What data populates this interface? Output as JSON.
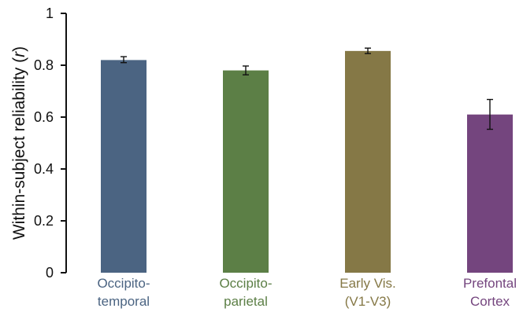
{
  "chart_data": {
    "type": "bar",
    "title": "",
    "xlabel": "",
    "ylabel": "Within-subject reliability (r)",
    "ylabel_parts": [
      "Within-subject reliability (",
      "r",
      ")"
    ],
    "ylim": [
      0,
      1
    ],
    "yticks": [
      0,
      0.2,
      0.4,
      0.6,
      0.8,
      1
    ],
    "ytick_labels": [
      "0",
      "0.2",
      "0.4",
      "0.6",
      "0.8",
      "1"
    ],
    "grid": false,
    "categories": [
      {
        "lines": [
          "Occipito-",
          "temporal"
        ],
        "color": "#4b6482"
      },
      {
        "lines": [
          "Occipito-",
          "parietal"
        ],
        "color": "#5c7f46"
      },
      {
        "lines": [
          "Early Vis.",
          "(V1-V3)"
        ],
        "color": "#857846"
      },
      {
        "lines": [
          "Prefontal",
          "Cortex"
        ],
        "color": "#74457e"
      }
    ],
    "values": [
      0.82,
      0.78,
      0.855,
      0.61
    ],
    "error_low": [
      0.81,
      0.763,
      0.845,
      0.553
    ],
    "error_high": [
      0.833,
      0.797,
      0.866,
      0.668
    ],
    "colors": [
      "#4b6482",
      "#5c7f46",
      "#857846",
      "#74457e"
    ]
  }
}
